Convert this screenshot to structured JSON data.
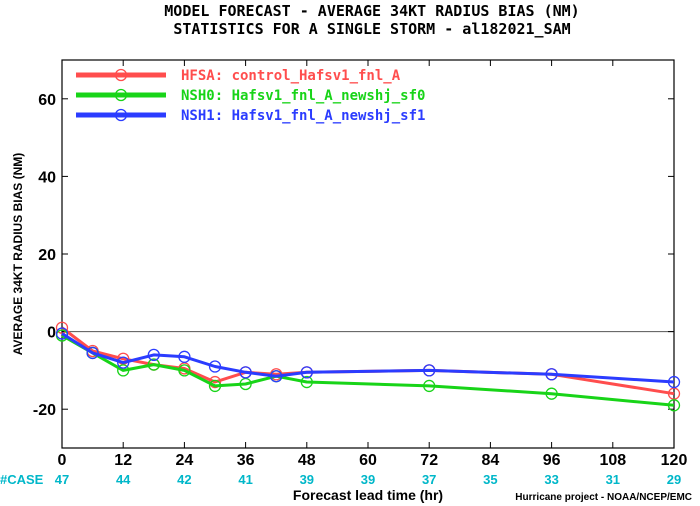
{
  "chart_data": {
    "type": "line",
    "title": "MODEL FORECAST - AVERAGE 34KT RADIUS BIAS (NM)",
    "subtitle": "STATISTICS FOR A SINGLE STORM - al182021_SAM",
    "xlabel": "Forecast lead time (hr)",
    "ylabel": "AVERAGE 34KT RADIUS BIAS (NM)",
    "xlim": [
      0,
      120
    ],
    "ylim": [
      -30,
      70
    ],
    "x_ticks": [
      0,
      12,
      24,
      36,
      48,
      60,
      72,
      84,
      96,
      108,
      120
    ],
    "y_ticks": [
      -20,
      0,
      20,
      40,
      60
    ],
    "zero_line": 0,
    "grid": false,
    "legend_position": "top-left",
    "case_label": "#CASE",
    "case_counts": [
      {
        "x": 0,
        "n": "47"
      },
      {
        "x": 12,
        "n": "44"
      },
      {
        "x": 24,
        "n": "42"
      },
      {
        "x": 36,
        "n": "41"
      },
      {
        "x": 48,
        "n": "39"
      },
      {
        "x": 60,
        "n": "39"
      },
      {
        "x": 72,
        "n": "37"
      },
      {
        "x": 84,
        "n": "35"
      },
      {
        "x": 96,
        "n": "33"
      },
      {
        "x": 108,
        "n": "31"
      },
      {
        "x": 120,
        "n": "29"
      }
    ],
    "series": [
      {
        "name": "HFSA: control_Hafsv1_fnl_A",
        "color": "#ff4d4d",
        "x": [
          0,
          6,
          12,
          18,
          24,
          30,
          36,
          42,
          48,
          72,
          96,
          120
        ],
        "y": [
          1,
          -5,
          -7,
          -8.5,
          -9.5,
          -13,
          -10.5,
          -11,
          -10.5,
          -10,
          -11,
          -16
        ]
      },
      {
        "name": "NSH0: Hafsv1_fnl_A_newshj_sf0",
        "color": "#18d418",
        "x": [
          0,
          6,
          12,
          18,
          24,
          30,
          36,
          42,
          48,
          72,
          96,
          120
        ],
        "y": [
          -1,
          -5.5,
          -10,
          -8.5,
          -10,
          -14,
          -13.5,
          -11.5,
          -13,
          -14,
          -16,
          -19
        ]
      },
      {
        "name": "NSH1: Hafsv1_fnl_A_newshj_sf1",
        "color": "#2b3cff",
        "x": [
          0,
          6,
          12,
          18,
          24,
          30,
          36,
          42,
          48,
          72,
          96,
          120
        ],
        "y": [
          -0.5,
          -5.5,
          -8,
          -6,
          -6.5,
          -9,
          -10.5,
          -11.5,
          -10.5,
          -10,
          -11,
          -13
        ]
      }
    ],
    "credit": "Hurricane project - NOAA/NCEP/EMC"
  }
}
